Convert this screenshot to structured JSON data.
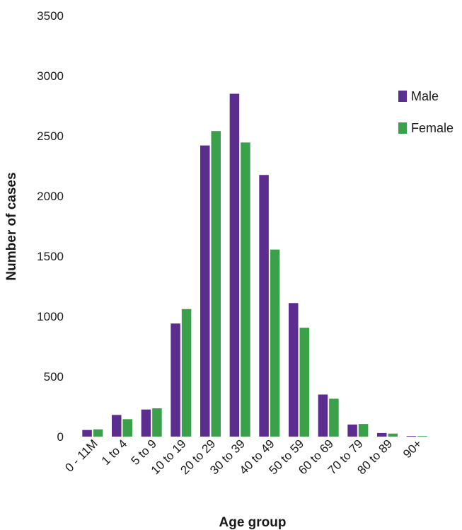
{
  "chart_data": {
    "type": "bar",
    "title": "",
    "xlabel": "Age group",
    "ylabel": "Number of cases",
    "ylim": [
      0,
      3500
    ],
    "yticks": [
      0,
      500,
      1000,
      1500,
      2000,
      2500,
      3000,
      3500
    ],
    "grid": false,
    "legend_position": "right",
    "categories": [
      "0 - 11M",
      "1 to 4",
      "5 to 9",
      "10 to 19",
      "20 to 29",
      "30 to 39",
      "40 to 49",
      "50 to 59",
      "60 to 69",
      "70 to 79",
      "80 to 89",
      "90+"
    ],
    "series": [
      {
        "name": "Male",
        "color": "#5b2d8e",
        "values": [
          55,
          180,
          225,
          940,
          2420,
          2850,
          2175,
          1110,
          350,
          100,
          30,
          5
        ]
      },
      {
        "name": "Female",
        "color": "#3aa04a",
        "values": [
          60,
          145,
          235,
          1060,
          2540,
          2445,
          1555,
          905,
          315,
          105,
          25,
          5
        ]
      }
    ]
  }
}
